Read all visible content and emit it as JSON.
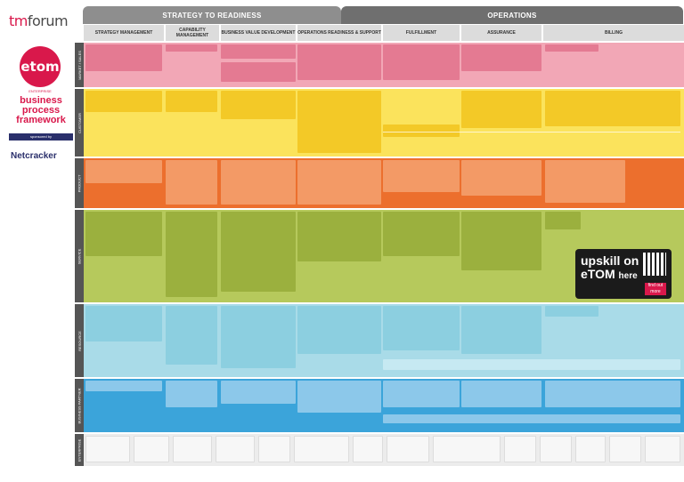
{
  "brand": {
    "logo_tm": "tm",
    "logo_forum": "forum",
    "etom": "etom",
    "etom_sub": "ENTERPRISE",
    "title_line1": "business",
    "title_line2": "process",
    "title_line3": "framework",
    "sponsored_by": "sponsored by",
    "sponsor": "Netcracker"
  },
  "header": {
    "strategy": "STRATEGY TO READINESS",
    "operations": "OPERATIONS"
  },
  "columns": [
    "STRATEGY MANAGEMENT",
    "CAPABILITY MANAGEMENT",
    "BUSINESS VALUE DEVELOPMENT",
    "OPERATIONS READINESS & SUPPORT",
    "FULFILLMENT",
    "ASSURANCE",
    "BILLING"
  ],
  "rows": [
    "MARKET / SALES",
    "CUSTOMER",
    "PRODUCT",
    "SERVICE",
    "RESOURCE",
    "BUSINESS PARTNER",
    "ENTERPRISE"
  ],
  "promo": {
    "line1": "upskill on",
    "line2": "eTOM",
    "line3": "here",
    "more": "find out more"
  }
}
